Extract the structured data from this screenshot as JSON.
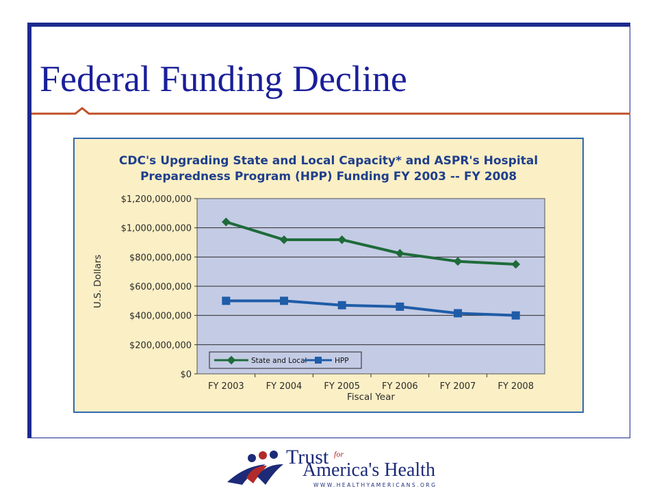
{
  "slide": {
    "title": "Federal Funding Decline",
    "colors": {
      "title": "#1a1f99",
      "frame": "#1d2a8f",
      "rule": "#c0502a"
    }
  },
  "logo": {
    "trust": "Trust",
    "for": "for",
    "americas_health": "America's Health",
    "url": "WWW.HEALTHYAMERICANS.ORG",
    "icon": "people-figures-logo-icon"
  },
  "chart_data": {
    "type": "line",
    "title_lines": [
      "CDC's Upgrading State and Local Capacity* and ASPR's Hospital",
      "Preparedness Program (HPP) Funding FY 2003 -- FY 2008"
    ],
    "xlabel": "Fiscal Year",
    "ylabel": "U.S. Dollars",
    "categories": [
      "FY 2003",
      "FY 2004",
      "FY 2005",
      "FY 2006",
      "FY 2007",
      "FY 2008"
    ],
    "ylim": [
      0,
      1200000000
    ],
    "yticks": [
      0,
      200000000,
      400000000,
      600000000,
      800000000,
      1000000000,
      1200000000
    ],
    "ytick_labels": [
      "$0",
      "$200,000,000",
      "$400,000,000",
      "$600,000,000",
      "$800,000,000",
      "$1,000,000,000",
      "$1,200,000,000"
    ],
    "grid": true,
    "legend_position": "bottom-left",
    "series": [
      {
        "name": "State and Local",
        "color": "#1e6b3a",
        "marker": "diamond",
        "values": [
          1040000000,
          918000000,
          918000000,
          825000000,
          770000000,
          750000000
        ]
      },
      {
        "name": "HPP",
        "color": "#1f5ca8",
        "marker": "square",
        "values": [
          500000000,
          500000000,
          470000000,
          460000000,
          415000000,
          400000000
        ]
      }
    ],
    "colors": {
      "panel_bg": "#fbefc5",
      "panel_border": "#2f67b0",
      "plot_bg": "#c4cbe4"
    }
  }
}
